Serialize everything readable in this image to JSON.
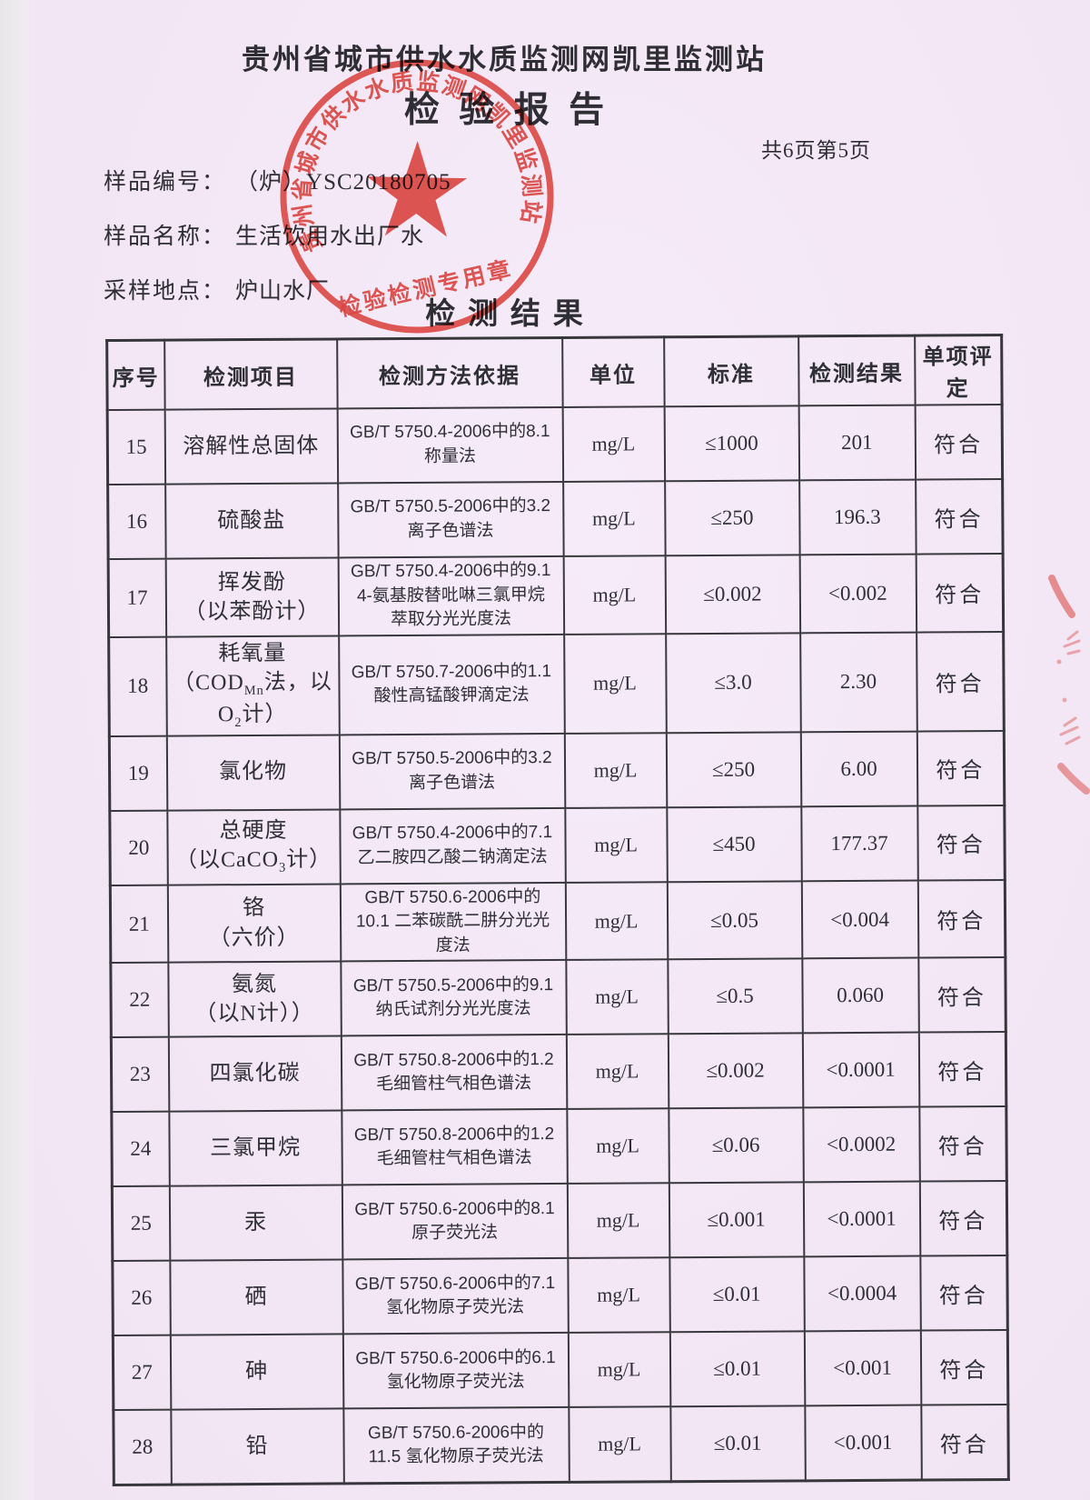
{
  "document": {
    "org_name": "贵州省城市供水水质监测网凯里监测站",
    "report_title": "检验报告",
    "page_info": "共6页第5页",
    "fields": [
      {
        "label": "样品编号：",
        "value": "（炉）YSC20180705"
      },
      {
        "label": "样品名称：",
        "value": "生活饮用水出厂水"
      },
      {
        "label": "采样地点：",
        "value": "炉山水厂"
      }
    ],
    "section_title": "检测结果"
  },
  "stamp": {
    "ring_text": "贵州省城市供水水质监测网凯里监测站",
    "bottom_text": "检验检测专用章",
    "color": "#e23e36"
  },
  "results_table": {
    "headers": [
      "序号",
      "检测项目",
      "检测方法依据",
      "单位",
      "标准",
      "检测结果",
      "单项评定"
    ],
    "rows": [
      {
        "no": "15",
        "item": "溶解性总固体",
        "method": "GB/T 5750.4-2006中的8.1<br>称量法",
        "unit": "mg/L",
        "standard": "≤1000",
        "result": "201",
        "evaluation": "符合"
      },
      {
        "no": "16",
        "item": "硫酸盐",
        "method": "GB/T 5750.5-2006中的3.2<br>离子色谱法",
        "unit": "mg/L",
        "standard": "≤250",
        "result": "196.3",
        "evaluation": "符合"
      },
      {
        "no": "17",
        "item": "挥发酚<br>（以苯酚计）",
        "method": "GB/T 5750.4-2006中的9.1<br>4-氨基胺替吡啉三氯甲烷<br>萃取分光光度法",
        "unit": "mg/L",
        "standard": "≤0.002",
        "result": "<0.002",
        "evaluation": "符合"
      },
      {
        "no": "18",
        "item": "耗氧量<br>（COD<sub>Mn</sub>法，以O<sub>2</sub>计）",
        "method": "GB/T 5750.7-2006中的1.1<br>酸性高锰酸钾滴定法",
        "unit": "mg/L",
        "standard": "≤3.0",
        "result": "2.30",
        "evaluation": "符合"
      },
      {
        "no": "19",
        "item": "氯化物",
        "method": "GB/T 5750.5-2006中的3.2<br>离子色谱法",
        "unit": "mg/L",
        "standard": "≤250",
        "result": "6.00",
        "evaluation": "符合"
      },
      {
        "no": "20",
        "item": "总硬度<br>（以CaCO<sub>3</sub>计）",
        "method": "GB/T 5750.4-2006中的7.1<br>乙二胺四乙酸二钠滴定法",
        "unit": "mg/L",
        "standard": "≤450",
        "result": "177.37",
        "evaluation": "符合"
      },
      {
        "no": "21",
        "item": "铬<br>（六价）",
        "method": "GB/T 5750.6-2006中的<br>10.1 二苯碳酰二肼分光光<br>度法",
        "unit": "mg/L",
        "standard": "≤0.05",
        "result": "<0.004",
        "evaluation": "符合"
      },
      {
        "no": "22",
        "item": "氨氮<br>（以N计））",
        "method": "GB/T 5750.5-2006中的9.1<br>纳氏试剂分光光度法",
        "unit": "mg/L",
        "standard": "≤0.5",
        "result": "0.060",
        "evaluation": "符合"
      },
      {
        "no": "23",
        "item": "四氯化碳",
        "method": "GB/T 5750.8-2006中的1.2<br>毛细管柱气相色谱法",
        "unit": "mg/L",
        "standard": "≤0.002",
        "result": "<0.0001",
        "evaluation": "符合"
      },
      {
        "no": "24",
        "item": "三氯甲烷",
        "method": "GB/T 5750.8-2006中的1.2<br>毛细管柱气相色谱法",
        "unit": "mg/L",
        "standard": "≤0.06",
        "result": "<0.0002",
        "evaluation": "符合"
      },
      {
        "no": "25",
        "item": "汞",
        "method": "GB/T 5750.6-2006中的8.1<br>原子荧光法",
        "unit": "mg/L",
        "standard": "≤0.001",
        "result": "<0.0001",
        "evaluation": "符合"
      },
      {
        "no": "26",
        "item": "硒",
        "method": "GB/T 5750.6-2006中的7.1<br>氢化物原子荧光法",
        "unit": "mg/L",
        "standard": "≤0.01",
        "result": "<0.0004",
        "evaluation": "符合"
      },
      {
        "no": "27",
        "item": "砷",
        "method": "GB/T 5750.6-2006中的6.1<br>氢化物原子荧光法",
        "unit": "mg/L",
        "standard": "≤0.01",
        "result": "<0.001",
        "evaluation": "符合"
      },
      {
        "no": "28",
        "item": "铅",
        "method": "GB/T 5750.6-2006中的<br>11.5 氢化物原子荧光法",
        "unit": "mg/L",
        "standard": "≤0.01",
        "result": "<0.001",
        "evaluation": "符合"
      }
    ]
  }
}
